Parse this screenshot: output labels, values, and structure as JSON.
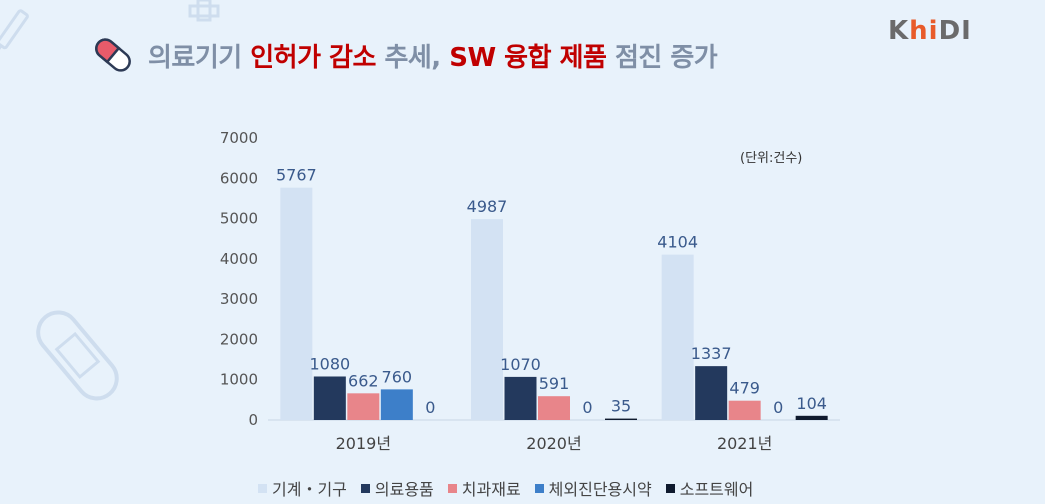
{
  "header": {
    "title_parts": [
      {
        "text": "의료기기 ",
        "color": "#7f8fa6"
      },
      {
        "text": "인허가 감소",
        "color": "#c00000"
      },
      {
        "text": " 추세, ",
        "color": "#7f8fa6"
      },
      {
        "text": "SW 융합 제품",
        "color": "#c00000"
      },
      {
        "text": " 점진 증가",
        "color": "#7f8fa6"
      }
    ],
    "logo": {
      "pre": "K",
      "hi": "hi",
      "post": "DI"
    }
  },
  "chart_data": {
    "type": "bar",
    "unit_note": "(단위:건수)",
    "categories": [
      "2019년",
      "2020년",
      "2021년"
    ],
    "ylim": [
      0,
      7000
    ],
    "yticks": [
      0,
      1000,
      2000,
      3000,
      4000,
      5000,
      6000,
      7000
    ],
    "series": [
      {
        "name": "기계・기구",
        "color": "#d3e2f3",
        "values": [
          5767,
          4987,
          4104
        ]
      },
      {
        "name": "의료용품",
        "color": "#23395d",
        "values": [
          1080,
          1070,
          1337
        ]
      },
      {
        "name": "치과재료",
        "color": "#e8858a",
        "values": [
          662,
          591,
          479
        ]
      },
      {
        "name": "체외진단용시약",
        "color": "#3d7fc9",
        "values": [
          760,
          0,
          0
        ]
      },
      {
        "name": "소프트웨어",
        "color": "#0f1a2e",
        "values": [
          0,
          35,
          104
        ]
      }
    ]
  }
}
